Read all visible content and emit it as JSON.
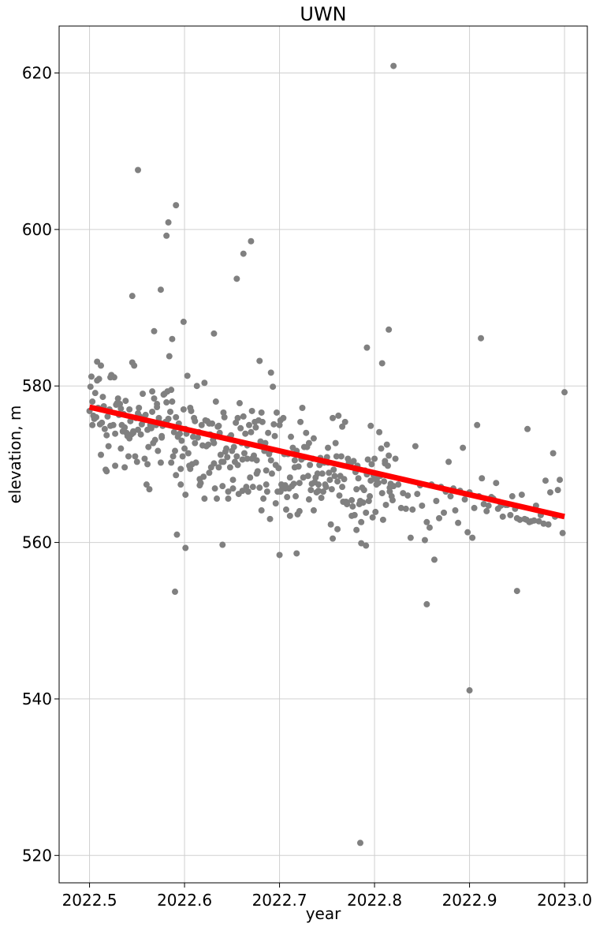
{
  "chart_data": {
    "type": "scatter",
    "title": "UWN",
    "xlabel": "year",
    "ylabel": "elevation, m",
    "xlim": [
      2022.468,
      2023.024
    ],
    "ylim": [
      516.5,
      626
    ],
    "xticks": [
      2022.5,
      2022.6,
      2022.7,
      2022.8,
      2022.9,
      2023.0
    ],
    "xtick_labels": [
      "2022.5",
      "2022.6",
      "2022.7",
      "2022.8",
      "2022.9",
      "2023.0"
    ],
    "yticks": [
      520,
      540,
      560,
      580,
      600,
      620
    ],
    "ytick_labels": [
      "520",
      "540",
      "560",
      "580",
      "600",
      "620"
    ],
    "grid": true,
    "point_color": "#808080",
    "trend_color": "#ff0000",
    "trend_line": {
      "x": [
        2022.5,
        2023.0
      ],
      "y": [
        577.3,
        563.3
      ]
    },
    "points": {
      "x": [
        2022.5,
        2022.501,
        2022.502,
        2022.503,
        2022.504,
        2022.505,
        2022.506,
        2022.507,
        2022.508,
        2022.509,
        2022.51,
        2022.511,
        2022.512,
        2022.513,
        2022.514,
        2022.515,
        2022.516,
        2022.517,
        2022.518,
        2022.519,
        2022.52,
        2022.521,
        2022.522,
        2022.523,
        2022.525,
        2022.526,
        2022.527,
        2022.528,
        2022.529,
        2022.53,
        2022.531,
        2022.532,
        2022.533,
        2022.534,
        2022.535,
        2022.536,
        2022.537,
        2022.538,
        2022.539,
        2022.54,
        2022.541,
        2022.542,
        2022.543,
        2022.544,
        2022.545,
        2022.546,
        2022.547,
        2022.548,
        2022.549,
        2022.55,
        2022.551,
        2022.552,
        2022.553,
        2022.554,
        2022.555,
        2022.556,
        2022.557,
        2022.558,
        2022.559,
        2022.56,
        2022.561,
        2022.562,
        2022.563,
        2022.564,
        2022.565,
        2022.566,
        2022.567,
        2022.568,
        2022.569,
        2022.57,
        2022.571,
        2022.572,
        2022.573,
        2022.574,
        2022.575,
        2022.576,
        2022.577,
        2022.578,
        2022.579,
        2022.58,
        2022.581,
        2022.582,
        2022.583,
        2022.584,
        2022.585,
        2022.586,
        2022.587,
        2022.588,
        2022.589,
        2022.59,
        2022.591,
        2022.592,
        2022.593,
        2022.594,
        2022.595,
        2022.596,
        2022.597,
        2022.598,
        2022.599,
        2022.6,
        2022.601,
        2022.602,
        2022.603,
        2022.604,
        2022.605,
        2022.606,
        2022.607,
        2022.608,
        2022.609,
        2022.61,
        2022.611,
        2022.612,
        2022.613,
        2022.614,
        2022.615,
        2022.616,
        2022.617,
        2022.618,
        2022.619,
        2022.62,
        2022.621,
        2022.622,
        2022.623,
        2022.624,
        2022.625,
        2022.626,
        2022.627,
        2022.628,
        2022.629,
        2022.63,
        2022.631,
        2022.632,
        2022.633,
        2022.634,
        2022.635,
        2022.636,
        2022.637,
        2022.638,
        2022.639,
        2022.64,
        2022.641,
        2022.642,
        2022.643,
        2022.644,
        2022.645,
        2022.646,
        2022.647,
        2022.648,
        2022.649,
        2022.65,
        2022.651,
        2022.652,
        2022.653,
        2022.654,
        2022.655,
        2022.656,
        2022.657,
        2022.658,
        2022.659,
        2022.66,
        2022.661,
        2022.662,
        2022.663,
        2022.664,
        2022.665,
        2022.666,
        2022.667,
        2022.668,
        2022.669,
        2022.67,
        2022.671,
        2022.672,
        2022.673,
        2022.674,
        2022.675,
        2022.676,
        2022.677,
        2022.678,
        2022.679,
        2022.68,
        2022.681,
        2022.682,
        2022.683,
        2022.684,
        2022.685,
        2022.686,
        2022.687,
        2022.688,
        2022.689,
        2022.69,
        2022.691,
        2022.692,
        2022.693,
        2022.694,
        2022.695,
        2022.696,
        2022.697,
        2022.698,
        2022.699,
        2022.7,
        2022.701,
        2022.702,
        2022.703,
        2022.704,
        2022.705,
        2022.706,
        2022.707,
        2022.708,
        2022.709,
        2022.71,
        2022.711,
        2022.712,
        2022.713,
        2022.714,
        2022.715,
        2022.716,
        2022.717,
        2022.718,
        2022.719,
        2022.72,
        2022.721,
        2022.722,
        2022.723,
        2022.724,
        2022.725,
        2022.726,
        2022.727,
        2022.728,
        2022.729,
        2022.73,
        2022.731,
        2022.732,
        2022.733,
        2022.734,
        2022.735,
        2022.736,
        2022.737,
        2022.738,
        2022.739,
        2022.74,
        2022.741,
        2022.742,
        2022.743,
        2022.744,
        2022.745,
        2022.746,
        2022.747,
        2022.748,
        2022.749,
        2022.75,
        2022.751,
        2022.752,
        2022.753,
        2022.754,
        2022.755,
        2022.756,
        2022.757,
        2022.758,
        2022.759,
        2022.76,
        2022.761,
        2022.762,
        2022.763,
        2022.764,
        2022.765,
        2022.766,
        2022.767,
        2022.768,
        2022.769,
        2022.77,
        2022.771,
        2022.772,
        2022.773,
        2022.774,
        2022.775,
        2022.776,
        2022.777,
        2022.778,
        2022.779,
        2022.78,
        2022.781,
        2022.782,
        2022.783,
        2022.784,
        2022.785,
        2022.786,
        2022.787,
        2022.788,
        2022.789,
        2022.79,
        2022.791,
        2022.792,
        2022.793,
        2022.794,
        2022.795,
        2022.796,
        2022.797,
        2022.798,
        2022.799,
        2022.8,
        2022.801,
        2022.802,
        2022.803,
        2022.804,
        2022.805,
        2022.806,
        2022.807,
        2022.808,
        2022.809,
        2022.81,
        2022.811,
        2022.812,
        2022.813,
        2022.814,
        2022.815,
        2022.816,
        2022.817,
        2022.818,
        2022.819,
        2022.82,
        2022.825,
        2022.83,
        2022.835,
        2022.84,
        2022.845,
        2022.85,
        2022.855,
        2022.86,
        2022.865,
        2022.87,
        2022.875,
        2022.88,
        2022.885,
        2022.89,
        2022.895,
        2022.9,
        2022.905,
        2022.91,
        2022.915,
        2022.92,
        2022.925,
        2022.93,
        2022.935,
        2022.94,
        2022.945,
        2022.95,
        2022.955,
        2022.96,
        2022.965,
        2022.97,
        2022.975,
        2022.98,
        2022.985,
        2022.99,
        2022.995,
        2023.0,
        2022.503,
        2022.508,
        2022.512,
        2022.518,
        2022.522,
        2022.527,
        2022.533,
        2022.537,
        2022.542,
        2022.546,
        2022.551,
        2022.556,
        2022.561,
        2022.566,
        2022.571,
        2022.576,
        2022.581,
        2022.586,
        2022.591,
        2022.596,
        2022.601,
        2022.606,
        2022.611,
        2022.616,
        2022.621,
        2022.626,
        2022.631,
        2022.636,
        2022.641,
        2022.646,
        2022.651,
        2022.656,
        2022.661,
        2022.666,
        2022.671,
        2022.676,
        2022.681,
        2022.686,
        2022.691,
        2022.696,
        2022.701,
        2022.706,
        2022.711,
        2022.716,
        2022.721,
        2022.726,
        2022.731,
        2022.736,
        2022.741,
        2022.746,
        2022.751,
        2022.756,
        2022.761,
        2022.766,
        2022.771,
        2022.776,
        2022.781,
        2022.786,
        2022.791,
        2022.796,
        2022.801,
        2022.806,
        2022.811,
        2022.816,
        2022.822,
        2022.828,
        2022.833,
        2022.838,
        2022.843,
        2022.848,
        2022.853,
        2022.858,
        2022.863,
        2022.868,
        2022.873,
        2022.878,
        2022.883,
        2022.888,
        2022.893,
        2022.898,
        2022.903,
        2022.908,
        2022.913,
        2022.918,
        2022.923,
        2022.928,
        2022.933,
        2022.938,
        2022.943,
        2022.948,
        2022.953,
        2022.958,
        2022.963,
        2022.968,
        2022.973,
        2022.978,
        2022.983,
        2022.988,
        2022.993,
        2022.998,
        2022.551,
        2022.575,
        2022.581,
        2022.583,
        2022.587,
        2022.591,
        2022.655,
        2022.662,
        2022.67,
        2022.59,
        2022.601,
        2022.64,
        2022.7,
        2022.718,
        2022.785,
        2022.792,
        2022.808,
        2022.815,
        2022.82,
        2022.855,
        2022.9,
        2022.912,
        2022.95,
        2022.961,
        2022.545,
        2022.568,
        2022.599,
        2022.631,
        2022.679,
        2022.691
      ],
      "y": [
        576.8,
        579.9,
        581.2,
        578.0,
        576.2,
        575.8,
        579.1,
        576.0,
        583.1,
        577.2,
        580.9,
        575.1,
        582.6,
        575.3,
        578.6,
        577.4,
        574.5,
        569.3,
        573.7,
        576.1,
        572.3,
        577.0,
        574.9,
        581.4,
        575.0,
        581.1,
        573.9,
        577.6,
        577.8,
        578.4,
        576.3,
        577.7,
        577.1,
        575.0,
        574.2,
        576.4,
        574.7,
        578.1,
        574.0,
        573.6,
        571.0,
        577.0,
        575.5,
        573.8,
        583.0,
        574.0,
        582.6,
        571.0,
        575.9,
        570.3,
        576.5,
        577.2,
        576.1,
        573.8,
        575.1,
        575.8,
        575.6,
        570.7,
        576.3,
        567.4,
        574.4,
        572.2,
        566.8,
        575.0,
        574.6,
        579.3,
        572.7,
        578.4,
        573.1,
        575.0,
        577.3,
        571.7,
        575.9,
        575.3,
        570.2,
        573.4,
        574.9,
        578.9,
        579.0,
        575.4,
        575.3,
        579.3,
        575.8,
        583.8,
        576.7,
        579.5,
        578.0,
        571.0,
        574.1,
        571.7,
        568.6,
        561.0,
        573.5,
        575.2,
        573.9,
        567.4,
        573.0,
        571.0,
        577.0,
        572.0,
        574.5,
        573.9,
        581.3,
        571.4,
        569.8,
        577.2,
        576.8,
        570.0,
        573.5,
        575.9,
        572.7,
        570.2,
        580.0,
        573.4,
        574.1,
        568.1,
        567.6,
        575.0,
        572.4,
        568.4,
        565.6,
        575.6,
        572.3,
        575.5,
        572.5,
        568.9,
        573.8,
        569.6,
        575.2,
        573.1,
        572.7,
        566.9,
        578.0,
        565.6,
        574.8,
        569.6,
        574.0,
        571.2,
        570.3,
        567.2,
        570.3,
        576.0,
        571.6,
        572.0,
        570.9,
        566.5,
        573.4,
        569.6,
        573.7,
        571.7,
        568.0,
        572.2,
        570.3,
        575.3,
        571.0,
        569.9,
        566.2,
        577.8,
        574.6,
        572.7,
        570.6,
        576.1,
        571.4,
        573.9,
        567.1,
        572.4,
        566.5,
        575.0,
        568.3,
        574.1,
        570.7,
        567.1,
        571.1,
        575.4,
        574.7,
        568.8,
        569.1,
        575.6,
        567.0,
        572.9,
        564.1,
        575.4,
        565.6,
        571.7,
        572.7,
        569.2,
        566.5,
        574.0,
        571.3,
        563.0,
        570.5,
        568.8,
        579.9,
        575.1,
        573.6,
        569.9,
        576.6,
        566.5,
        569.5,
        575.0,
        575.6,
        567.4,
        566.9,
        575.9,
        571.3,
        567.3,
        564.2,
        565.8,
        571.3,
        566.9,
        563.4,
        573.5,
        567.2,
        572.1,
        567.5,
        570.5,
        565.9,
        571.7,
        563.6,
        569.7,
        564.0,
        575.4,
        570.6,
        577.2,
        568.3,
        570.9,
        570.9,
        574.0,
        572.2,
        568.5,
        572.7,
        569.9,
        566.7,
        567.5,
        570.7,
        573.3,
        567.7,
        568.3,
        566.4,
        568.8,
        566.6,
        569.9,
        570.8,
        565.7,
        568.8,
        570.3,
        570.2,
        567.4,
        567.1,
        570.9,
        572.1,
        568.9,
        568.0,
        562.3,
        566.8,
        575.9,
        569.3,
        568.5,
        572.7,
        571.0,
        567.8,
        576.2,
        566.0,
        568.5,
        571.0,
        574.8,
        565.2,
        568.1,
        575.4,
        565.2,
        564.9,
        570.7,
        570.2,
        569.7,
        570.1,
        565.4,
        564.6,
        570.4,
        563.5,
        569.0,
        566.8,
        569.8,
        568.2,
        564.9,
        565.3,
        562.6,
        567.0,
        565.1,
        566.7,
        569.2,
        563.8,
        568.7,
        570.6,
        565.3,
        565.9,
        567.9,
        570.0,
        563.2,
        568.6,
        570.7,
        563.9,
        567.4,
        568.3,
        567.6,
        574.1,
        568.5,
        572.0,
        566.3,
        562.9,
        567.8,
        570.1,
        564.8,
        572.5,
        569.8,
        571.1,
        566.5,
        567.5,
        565.9,
        565.4,
        567.2,
        567.4,
        566.3,
        566.0,
        564.2,
        566.2,
        564.7,
        562.6,
        567.4,
        565.3,
        567.1,
        566.5,
        565.9,
        564.1,
        566.6,
        565.5,
        566.4,
        564.4,
        565.9,
        564.9,
        564.7,
        565.6,
        564.3,
        563.3,
        564.8,
        565.9,
        563.1,
        566.1,
        562.9,
        562.7,
        564.7,
        563.5,
        567.9,
        566.4,
        563.3,
        568.0,
        579.2,
        575.0,
        580.7,
        571.2,
        569.1,
        581.1,
        569.8,
        572.0,
        569.6,
        573.3,
        574.2,
        574.4,
        579.0,
        570.0,
        576.7,
        577.7,
        573.6,
        577.9,
        570.2,
        576.0,
        569.4,
        566.1,
        569.4,
        575.5,
        567.3,
        580.4,
        575.2,
        570.1,
        574.9,
        576.6,
        565.6,
        566.9,
        575.9,
        566.6,
        570.7,
        576.8,
        570.5,
        576.6,
        567.4,
        571.8,
        565.0,
        566.5,
        566.9,
        568.3,
        569.6,
        567.6,
        572.2,
        565.5,
        564.1,
        567.4,
        566.5,
        570.2,
        560.5,
        561.7,
        567.1,
        564.9,
        563.4,
        561.6,
        559.9,
        559.6,
        574.9,
        568.1,
        568.6,
        570.4,
        567.0,
        570.7,
        564.4,
        564.3,
        560.6,
        572.3,
        567.3,
        560.3,
        561.9,
        557.8,
        563.1,
        563.8,
        570.3,
        566.9,
        562.5,
        572.1,
        561.3,
        560.6,
        575.0,
        568.2,
        564.0,
        565.8,
        567.6,
        564.7,
        564.8,
        563.5,
        564.3,
        562.9,
        563.0,
        562.6,
        562.8,
        562.7,
        562.4,
        562.3,
        571.4,
        566.7,
        561.2,
        607.6,
        592.3,
        599.2,
        600.9,
        586.0,
        603.1,
        593.7,
        596.9,
        598.5,
        553.7,
        559.3,
        559.7,
        558.4,
        558.6,
        521.6,
        584.9,
        582.9,
        587.2,
        620.9,
        552.1,
        541.1,
        586.1,
        553.8,
        574.5,
        591.5,
        587.0,
        588.2,
        586.7,
        583.2,
        581.7
      ]
    }
  }
}
